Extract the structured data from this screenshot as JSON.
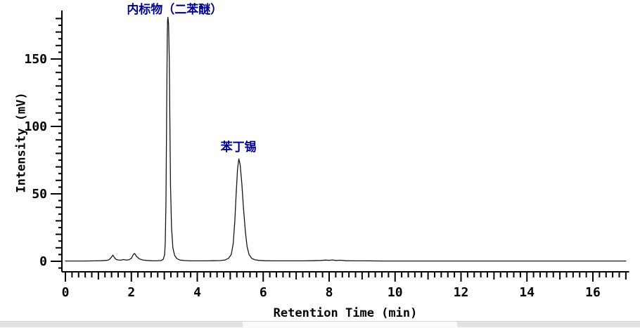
{
  "window": {
    "background": "#ffffff",
    "bottom_strip_color": "#e3e3e3"
  },
  "chart_data": {
    "type": "line",
    "title": "",
    "xlabel": "Retention Time (min)",
    "ylabel": "Intensity (mV)",
    "xlim": [
      0,
      17.1
    ],
    "ylim": [
      -7.5,
      186
    ],
    "grid": false,
    "x_major_ticks": [
      0,
      2,
      4,
      6,
      8,
      10,
      12,
      14,
      16
    ],
    "x_minor_step": 0.2,
    "x_axis_end": 17.0,
    "y_major_ticks": [
      0,
      50,
      100,
      150
    ],
    "y_minor_step": 5,
    "y_minor_min": -5,
    "y_minor_max": 180,
    "trace_color": "#161616",
    "axis_color": "#000000",
    "annotation_color": "#00008B",
    "peaks": [
      {
        "label": "内标物（二苯醚）",
        "retention_time_min": 3.1,
        "height_mV": 181
      },
      {
        "label": "苯丁锡",
        "retention_time_min": 5.25,
        "height_mV": 76
      }
    ],
    "trace": [
      [
        0.0,
        0.2
      ],
      [
        0.3,
        0.2
      ],
      [
        0.6,
        0.2
      ],
      [
        0.9,
        0.3
      ],
      [
        1.1,
        0.4
      ],
      [
        1.25,
        0.7
      ],
      [
        1.33,
        1.2
      ],
      [
        1.4,
        3.2
      ],
      [
        1.44,
        4.6
      ],
      [
        1.48,
        3.0
      ],
      [
        1.53,
        1.5
      ],
      [
        1.6,
        1.0
      ],
      [
        1.68,
        0.8
      ],
      [
        1.76,
        1.3
      ],
      [
        1.84,
        0.9
      ],
      [
        1.92,
        1.1
      ],
      [
        2.0,
        2.2
      ],
      [
        2.06,
        5.0
      ],
      [
        2.1,
        5.8
      ],
      [
        2.16,
        3.5
      ],
      [
        2.24,
        1.8
      ],
      [
        2.34,
        1.0
      ],
      [
        2.46,
        0.6
      ],
      [
        2.6,
        0.4
      ],
      [
        2.75,
        0.3
      ],
      [
        2.9,
        0.5
      ],
      [
        2.97,
        1.5
      ],
      [
        3.01,
        5
      ],
      [
        3.03,
        14
      ],
      [
        3.05,
        45
      ],
      [
        3.07,
        105
      ],
      [
        3.09,
        165
      ],
      [
        3.1,
        179
      ],
      [
        3.11,
        181
      ],
      [
        3.13,
        176
      ],
      [
        3.15,
        150
      ],
      [
        3.17,
        100
      ],
      [
        3.19,
        55
      ],
      [
        3.22,
        25
      ],
      [
        3.26,
        10
      ],
      [
        3.31,
        4.5
      ],
      [
        3.38,
        2
      ],
      [
        3.48,
        0.9
      ],
      [
        3.62,
        0.5
      ],
      [
        3.8,
        0.3
      ],
      [
        4.0,
        0.3
      ],
      [
        4.25,
        0.3
      ],
      [
        4.5,
        0.4
      ],
      [
        4.7,
        0.5
      ],
      [
        4.85,
        1.0
      ],
      [
        4.95,
        2.2
      ],
      [
        5.03,
        5
      ],
      [
        5.09,
        13
      ],
      [
        5.14,
        30
      ],
      [
        5.18,
        50
      ],
      [
        5.22,
        68
      ],
      [
        5.26,
        76
      ],
      [
        5.3,
        72
      ],
      [
        5.35,
        58
      ],
      [
        5.4,
        40
      ],
      [
        5.46,
        22
      ],
      [
        5.51,
        11
      ],
      [
        5.57,
        5
      ],
      [
        5.65,
        2.2
      ],
      [
        5.75,
        1.1
      ],
      [
        5.88,
        0.6
      ],
      [
        6.05,
        0.4
      ],
      [
        6.3,
        0.3
      ],
      [
        6.6,
        0.3
      ],
      [
        6.9,
        0.3
      ],
      [
        7.2,
        0.3
      ],
      [
        7.5,
        0.4
      ],
      [
        7.75,
        0.6
      ],
      [
        7.9,
        0.9
      ],
      [
        8.0,
        0.7
      ],
      [
        8.1,
        1.0
      ],
      [
        8.2,
        0.6
      ],
      [
        8.35,
        0.8
      ],
      [
        8.5,
        0.4
      ],
      [
        8.8,
        0.3
      ],
      [
        9.2,
        0.3
      ],
      [
        9.6,
        0.2
      ],
      [
        10.0,
        0.2
      ],
      [
        10.5,
        0.2
      ],
      [
        11.0,
        0.2
      ],
      [
        11.5,
        0.2
      ],
      [
        12.0,
        0.2
      ],
      [
        12.5,
        0.2
      ],
      [
        13.0,
        0.2
      ],
      [
        13.5,
        0.2
      ],
      [
        14.0,
        0.2
      ],
      [
        14.5,
        0.2
      ],
      [
        15.0,
        0.2
      ],
      [
        15.5,
        0.2
      ],
      [
        16.0,
        0.2
      ],
      [
        16.5,
        0.2
      ],
      [
        17.0,
        0.2
      ]
    ]
  }
}
